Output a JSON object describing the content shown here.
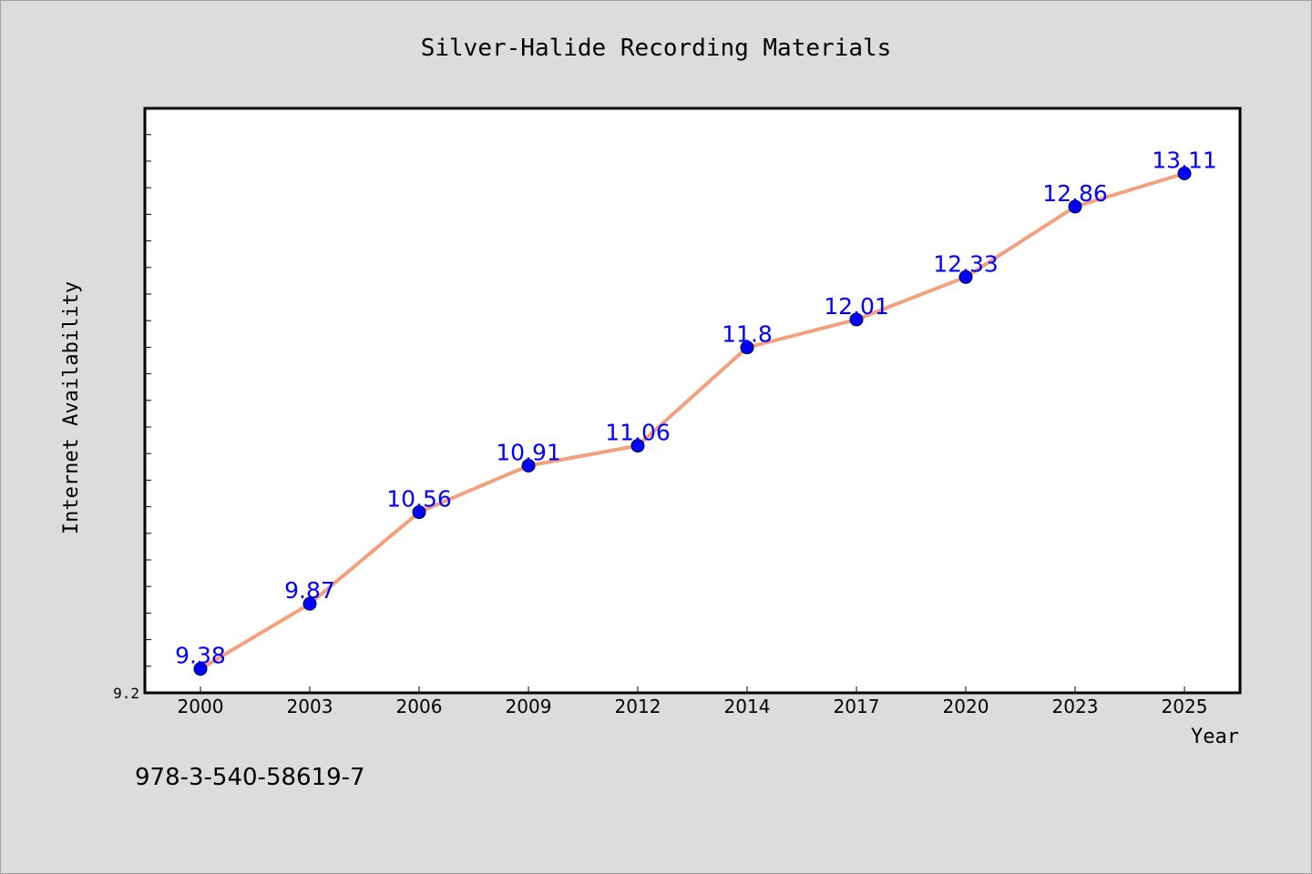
{
  "chart_data": {
    "type": "line",
    "title": "Silver-Halide Recording Materials",
    "xlabel": "Year",
    "ylabel": "Internet Availability",
    "categories": [
      "2000",
      "2003",
      "2006",
      "2009",
      "2012",
      "2014",
      "2017",
      "2020",
      "2023",
      "2025"
    ],
    "series": [
      {
        "values": [
          9.38,
          9.87,
          10.56,
          10.91,
          11.06,
          11.8,
          12.01,
          12.33,
          12.86,
          13.11
        ]
      }
    ],
    "y_tick_labels": [
      "9.2"
    ],
    "ylim": [
      9.2,
      13.6
    ],
    "grid": false,
    "legend": "none",
    "line_color": "#f4a07c",
    "marker_color": "#0000ff",
    "label_color": "#0000ff"
  },
  "footer_text": "978-3-540-58619-7"
}
